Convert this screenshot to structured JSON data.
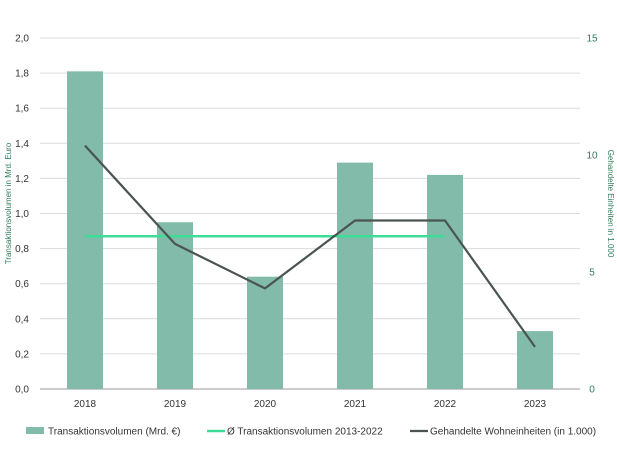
{
  "chart_data": {
    "type": "bar",
    "categories": [
      "2018",
      "2019",
      "2020",
      "2021",
      "2022",
      "2023"
    ],
    "series": [
      {
        "name": "Transaktionsvolumen (Mrd. €)",
        "kind": "bar",
        "axis": "left",
        "color": "#82bba9",
        "values": [
          1.81,
          0.95,
          0.64,
          1.29,
          1.22,
          0.33
        ]
      },
      {
        "name": "Ø Transaktionsvolumen 2013-2022",
        "kind": "line",
        "axis": "left",
        "color": "#3ddc97",
        "values": [
          0.87,
          0.87,
          0.87,
          0.87,
          0.87,
          null
        ]
      },
      {
        "name": "Gehandelte Wohneinheiten (in 1.000)",
        "kind": "line",
        "axis": "right",
        "color": "#4a5450",
        "values": [
          10.4,
          6.2,
          4.3,
          7.2,
          7.2,
          1.8
        ]
      }
    ],
    "y_left": {
      "label": "Transaktionsvolumen in Mrd. Euro",
      "ylim": [
        0,
        2.0
      ],
      "ticks": [
        "0,0",
        "0,2",
        "0,4",
        "0,6",
        "0,8",
        "1,0",
        "1,2",
        "1,4",
        "1,6",
        "1,8",
        "2,0"
      ]
    },
    "y_right": {
      "label": "Gehandelte Einheiten in 1.000",
      "ylim": [
        0,
        15
      ],
      "ticks": [
        "0",
        "5",
        "10",
        "15"
      ]
    },
    "grid": true,
    "legend_position": "bottom"
  }
}
